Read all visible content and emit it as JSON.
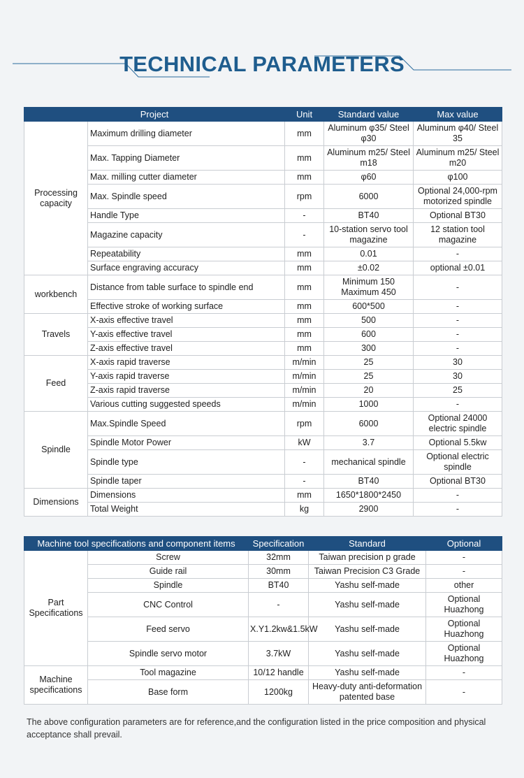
{
  "title": "TECHNICAL PARAMETERS",
  "table1": {
    "header": [
      "Project",
      "Unit",
      "Standard value",
      "Max value"
    ],
    "groups": [
      {
        "name": "Processing capacity",
        "rows": [
          [
            "Maximum drilling diameter",
            "mm",
            "Aluminum φ35/ Steel φ30",
            "Aluminum φ40/ Steel 35"
          ],
          [
            "Max. Tapping Diameter",
            "mm",
            "Aluminum m25/ Steel m18",
            "Aluminum m25/ Steel m20"
          ],
          [
            "Max. milling cutter diameter",
            "mm",
            "φ60",
            "φ100"
          ],
          [
            "Max. Spindle speed",
            "rpm",
            "6000",
            "Optional 24,000-rpm motorized spindle"
          ],
          [
            "Handle Type",
            "-",
            "BT40",
            "Optional BT30"
          ],
          [
            "Magazine capacity",
            "-",
            "10-station servo tool magazine",
            "12 station tool magazine"
          ],
          [
            "Repeatability",
            "mm",
            "0.01",
            "-"
          ],
          [
            "Surface engraving accuracy",
            "mm",
            "±0.02",
            "optional ±0.01"
          ]
        ]
      },
      {
        "name": "workbench",
        "rows": [
          [
            "Distance from table surface to spindle end",
            "mm",
            "Minimum 150 Maximum 450",
            "-"
          ],
          [
            "Effective stroke of working surface",
            "mm",
            "600*500",
            "-"
          ]
        ]
      },
      {
        "name": "Travels",
        "rows": [
          [
            "X-axis  effective travel",
            "mm",
            "500",
            "-"
          ],
          [
            "Y-axis effective  travel",
            "mm",
            "600",
            "-"
          ],
          [
            "Z-axis effective  travel",
            "mm",
            "300",
            "-"
          ]
        ]
      },
      {
        "name": "Feed",
        "rows": [
          [
            "X-axis rapid traverse",
            "m/min",
            "25",
            "30"
          ],
          [
            "Y-axis rapid traverse",
            "m/min",
            "25",
            "30"
          ],
          [
            "Z-axis rapid traverse",
            "m/min",
            "20",
            "25"
          ],
          [
            "Various cutting suggested speeds",
            "m/min",
            "1000",
            "-"
          ]
        ]
      },
      {
        "name": "Spindle",
        "rows": [
          [
            "Max.Spindle Speed",
            "rpm",
            "6000",
            "Optional 24000 electric spindle"
          ],
          [
            "Spindle Motor Power",
            "kW",
            "3.7",
            "Optional 5.5kw"
          ],
          [
            "Spindle type",
            "-",
            "mechanical spindle",
            "Optional electric spindle"
          ],
          [
            "Spindle taper",
            "-",
            "BT40",
            "Optional BT30"
          ]
        ]
      },
      {
        "name": "Dimensions",
        "rows": [
          [
            "Dimensions",
            "mm",
            "1650*1800*2450",
            "-"
          ],
          [
            "Total Weight",
            "kg",
            "2900",
            "-"
          ]
        ]
      }
    ]
  },
  "table2": {
    "header": [
      "Machine tool specifications and component items",
      "Specification",
      "Standard",
      "Optional"
    ],
    "groups": [
      {
        "name": "Part Specifications",
        "rows": [
          [
            "Screw",
            "32mm",
            "Taiwan precision p grade",
            "-"
          ],
          [
            "Guide rail",
            "30mm",
            "Taiwan Precision C3 Grade",
            "-"
          ],
          [
            "Spindle",
            "BT40",
            "Yashu self-made",
            "other"
          ],
          [
            "CNC Control",
            "-",
            "Yashu self-made",
            "Optional Huazhong"
          ],
          [
            "Feed servo",
            "X.Y1.2kw&1.5kW",
            "Yashu self-made",
            "Optional Huazhong"
          ],
          [
            "Spindle servo motor",
            "3.7kW",
            "Yashu self-made",
            "Optional Huazhong"
          ]
        ]
      },
      {
        "name": "Machine specifications",
        "rows": [
          [
            "Tool magazine",
            "10/12 handle",
            "Yashu self-made",
            "-"
          ],
          [
            "Base form",
            "1200kg",
            "Heavy-duty anti-deformation patented base",
            "-"
          ]
        ]
      }
    ]
  },
  "note": "The above configuration parameters are for reference,and the configuration listed in the price composition and physical acceptance shall prevail."
}
